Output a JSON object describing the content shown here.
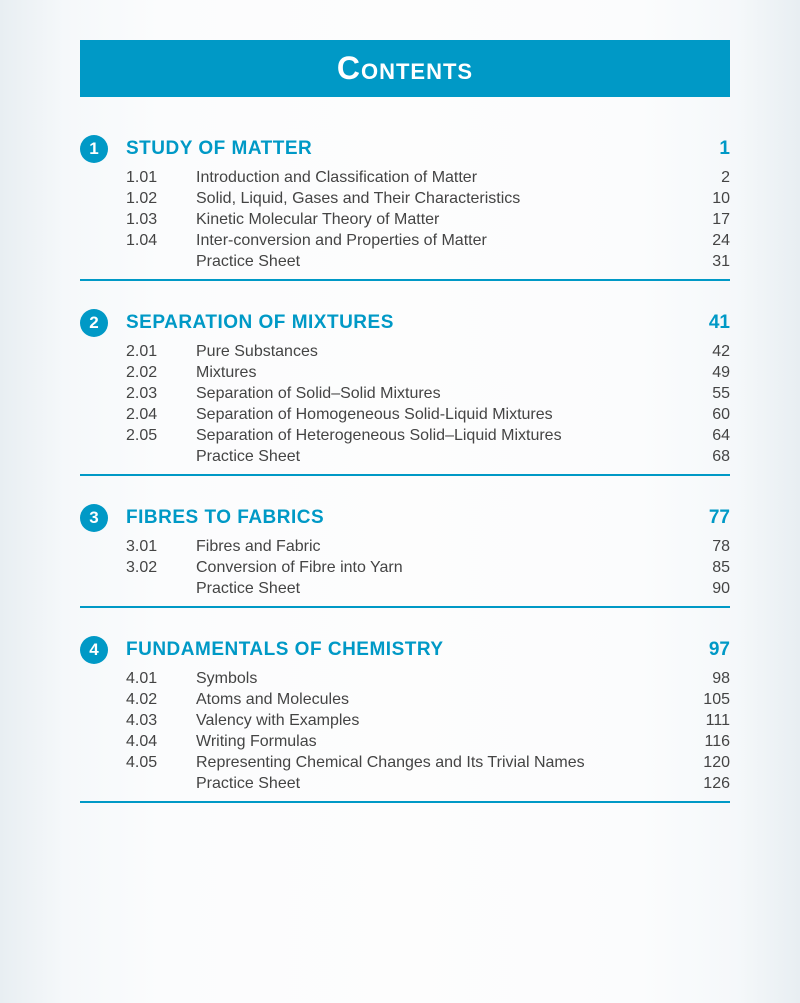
{
  "title": "Contents",
  "colors": {
    "accent": "#0099c6",
    "text": "#3a3a3a",
    "bg": "#fdfdfd"
  },
  "chapters": [
    {
      "num": "1",
      "title": "STUDY OF MATTER",
      "page": "1",
      "subs": [
        {
          "num": "1.01",
          "title": "Introduction and Classification of Matter",
          "page": "2"
        },
        {
          "num": "1.02",
          "title": "Solid, Liquid, Gases and Their Characteristics",
          "page": "10"
        },
        {
          "num": "1.03",
          "title": "Kinetic Molecular Theory of Matter",
          "page": "17"
        },
        {
          "num": "1.04",
          "title": "Inter-conversion and Properties of Matter",
          "page": "24"
        },
        {
          "num": "",
          "title": "Practice Sheet",
          "page": "31"
        }
      ]
    },
    {
      "num": "2",
      "title": "SEPARATION OF MIXTURES",
      "page": "41",
      "subs": [
        {
          "num": "2.01",
          "title": "Pure Substances",
          "page": "42"
        },
        {
          "num": "2.02",
          "title": "Mixtures",
          "page": "49"
        },
        {
          "num": "2.03",
          "title": "Separation of Solid–Solid Mixtures",
          "page": "55"
        },
        {
          "num": "2.04",
          "title": "Separation of Homogeneous Solid-Liquid Mixtures",
          "page": "60"
        },
        {
          "num": "2.05",
          "title": "Separation of Heterogeneous Solid–Liquid Mixtures",
          "page": "64"
        },
        {
          "num": "",
          "title": "Practice Sheet",
          "page": "68"
        }
      ]
    },
    {
      "num": "3",
      "title": "FIBRES TO FABRICS",
      "page": "77",
      "subs": [
        {
          "num": "3.01",
          "title": "Fibres and Fabric",
          "page": "78"
        },
        {
          "num": "3.02",
          "title": "Conversion of Fibre into Yarn",
          "page": "85"
        },
        {
          "num": "",
          "title": "Practice Sheet",
          "page": "90"
        }
      ]
    },
    {
      "num": "4",
      "title": "FUNDAMENTALS OF CHEMISTRY",
      "page": "97",
      "subs": [
        {
          "num": "4.01",
          "title": "Symbols",
          "page": "98"
        },
        {
          "num": "4.02",
          "title": "Atoms and Molecules",
          "page": "105"
        },
        {
          "num": "4.03",
          "title": "Valency with Examples",
          "page": "111"
        },
        {
          "num": "4.04",
          "title": "Writing Formulas",
          "page": "116"
        },
        {
          "num": "4.05",
          "title": "Representing Chemical Changes and Its Trivial Names",
          "page": "120"
        },
        {
          "num": "",
          "title": "Practice Sheet",
          "page": "126"
        }
      ]
    }
  ]
}
